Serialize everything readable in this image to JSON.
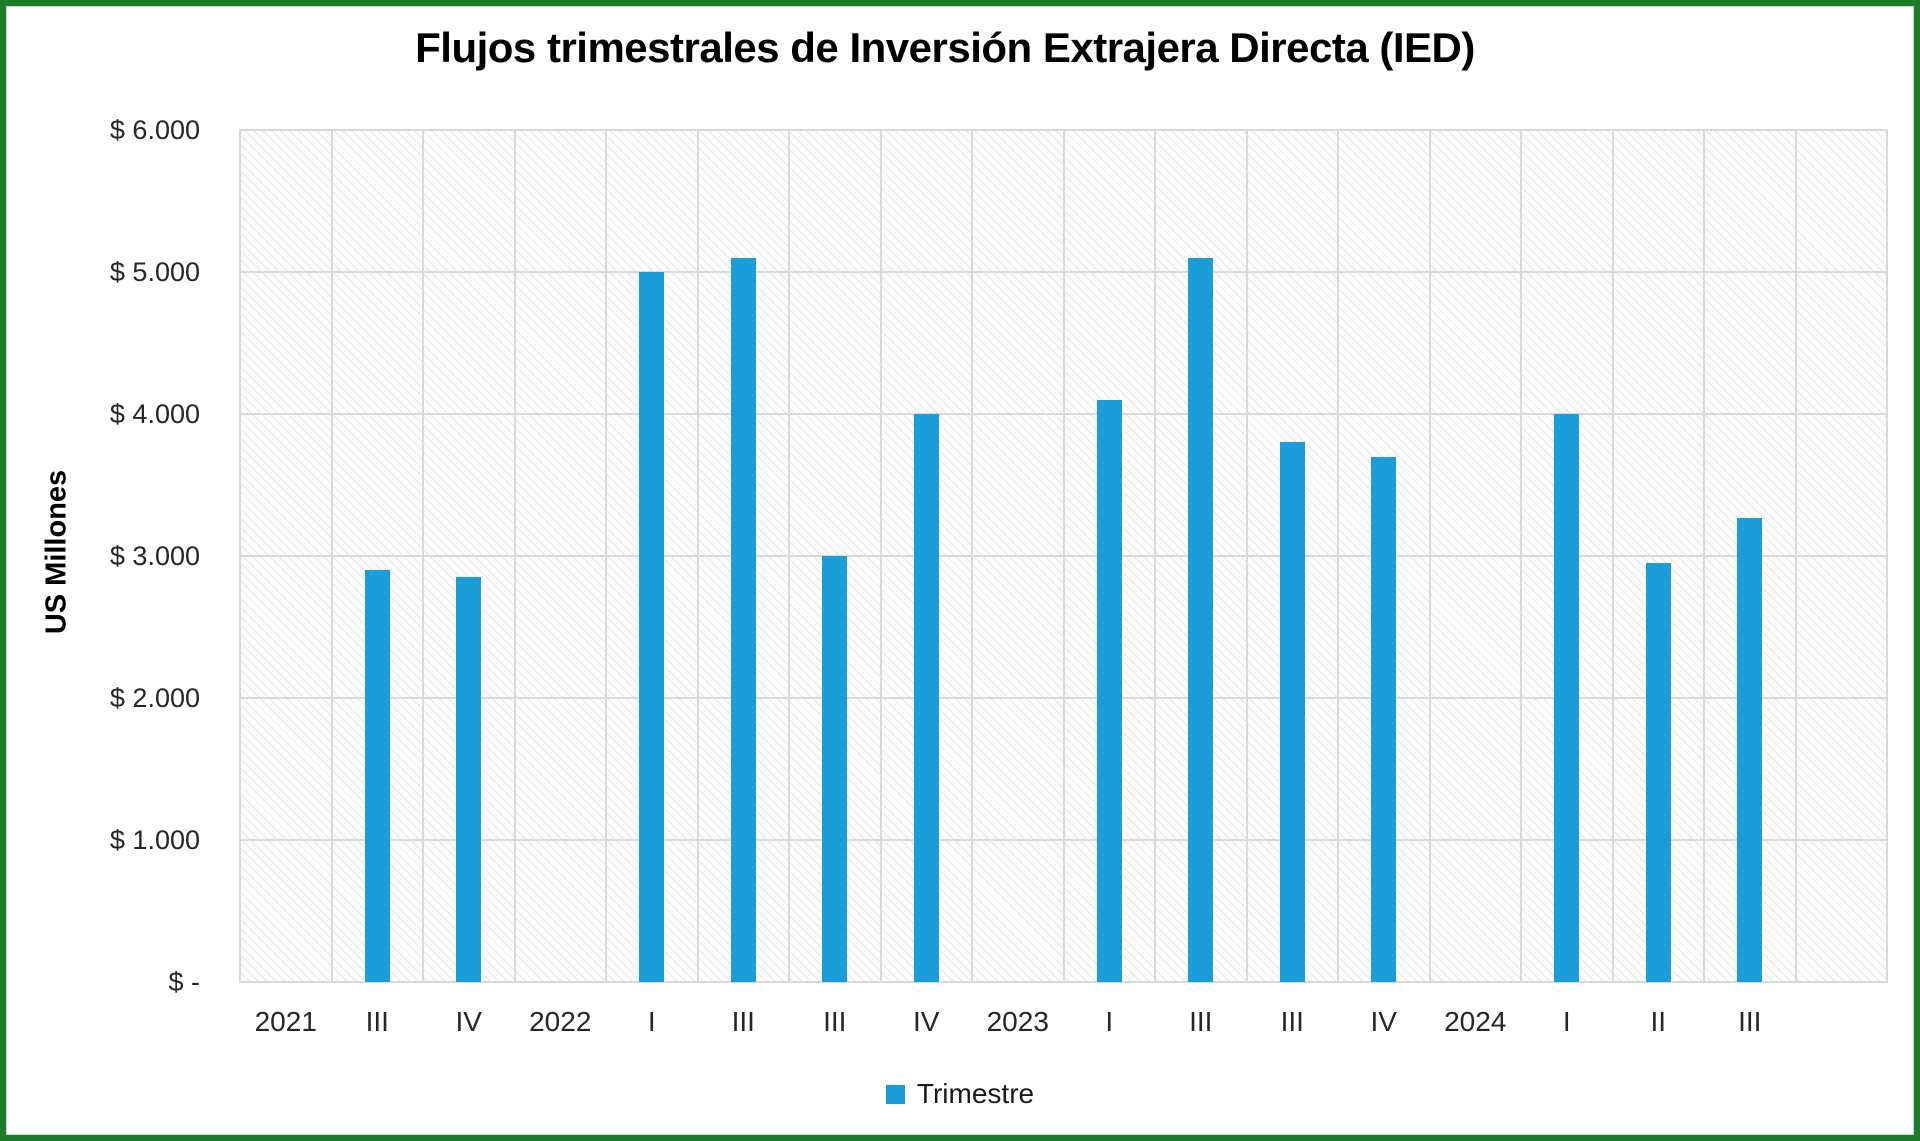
{
  "chart_data": {
    "type": "bar",
    "title": "Flujos trimestrales de Inversión Extrajera Directa (IED)",
    "xlabel": "",
    "ylabel": "US Millones",
    "categories": [
      "2021",
      "III",
      "IV",
      "2022",
      "I",
      "III",
      "III",
      "IV",
      "2023",
      "I",
      "III",
      "III",
      "IV",
      "2024",
      "I",
      "II",
      "III",
      ""
    ],
    "values": [
      null,
      2900,
      2850,
      null,
      5000,
      5100,
      3000,
      4000,
      null,
      4100,
      5100,
      3800,
      3700,
      null,
      4000,
      2950,
      3270,
      null
    ],
    "series_name": "Trimestre",
    "ylim": [
      0,
      6000
    ],
    "ytick_step": 1000,
    "ytick_labels": [
      "$ -",
      "$ 1.000",
      "$ 2.000",
      "$ 3.000",
      "$ 4.000",
      "$ 5.000",
      "$ 6.000"
    ],
    "legend": [
      "Trimestre"
    ],
    "legend_position": "bottom-center",
    "grid": "on",
    "plot_background": "diagonal-hatch",
    "bar_color": "#1B9DD9",
    "gridline_color": "#D9D9D9",
    "border_color": "#1E7A2B"
  }
}
